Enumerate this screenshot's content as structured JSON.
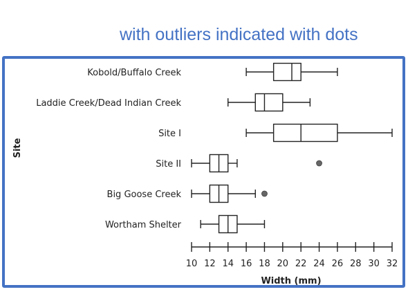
{
  "caption": "with outliers indicated with dots",
  "chart_data": {
    "type": "box",
    "orientation": "horizontal",
    "xlabel": "Width (mm)",
    "ylabel": "Site",
    "xlim": [
      10,
      32
    ],
    "xticks": [
      10,
      12,
      14,
      16,
      18,
      20,
      22,
      24,
      26,
      28,
      30,
      32
    ],
    "categories": [
      "Kobold/Buffalo Creek",
      "Laddie Creek/Dead Indian Creek",
      "Site I",
      "Site II",
      "Big Goose Creek",
      "Wortham Shelter"
    ],
    "boxes": [
      {
        "min": 16,
        "q1": 19,
        "median": 21,
        "q3": 22,
        "max": 26,
        "outliers": []
      },
      {
        "min": 14,
        "q1": 17,
        "median": 18,
        "q3": 20,
        "max": 23,
        "outliers": []
      },
      {
        "min": 16,
        "q1": 19,
        "median": 22,
        "q3": 26,
        "max": 32,
        "outliers": []
      },
      {
        "min": 10,
        "q1": 12,
        "median": 13,
        "q3": 14,
        "max": 15,
        "outliers": [
          24
        ]
      },
      {
        "min": 10,
        "q1": 12,
        "median": 13,
        "q3": 14,
        "max": 17,
        "outliers": [
          18
        ]
      },
      {
        "min": 11,
        "q1": 13,
        "median": 14,
        "q3": 15,
        "max": 18,
        "outliers": []
      }
    ]
  }
}
